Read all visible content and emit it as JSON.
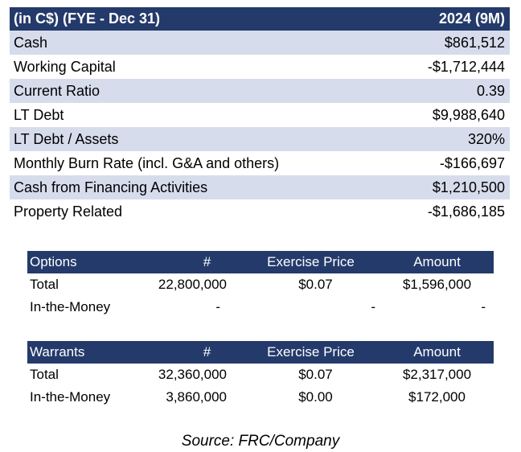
{
  "main": {
    "header": {
      "label": "(in C$) (FYE - Dec 31)",
      "period": "2024 (9M)"
    },
    "rows": [
      {
        "label": "Cash",
        "value": "$861,512"
      },
      {
        "label": "Working Capital",
        "value": "-$1,712,444"
      },
      {
        "label": "Current Ratio",
        "value": "0.39"
      },
      {
        "label": "LT Debt",
        "value": "$9,988,640"
      },
      {
        "label": "LT Debt / Assets",
        "value": "320%"
      },
      {
        "label": "Monthly Burn Rate (incl. G&A and others)",
        "value": "-$166,697"
      },
      {
        "label": "Cash from Financing Activities",
        "value": "$1,210,500"
      },
      {
        "label": "Property Related",
        "value": "-$1,686,185"
      }
    ],
    "colors": {
      "header_bg": "#243a6b",
      "alt_row_bg": "#d6dcec"
    }
  },
  "options": {
    "header": {
      "c1": "Options",
      "c2": "#",
      "c3": "Exercise Price",
      "c4": "Amount"
    },
    "rows": [
      {
        "c1": "Total",
        "c2": "22,800,000",
        "c3": "$0.07",
        "c4": "$1,596,000"
      },
      {
        "c1": "In-the-Money",
        "c2": "-",
        "c3": "-",
        "c4": "-"
      }
    ]
  },
  "warrants": {
    "header": {
      "c1": "Warrants",
      "c2": "#",
      "c3": "Exercise Price",
      "c4": "Amount"
    },
    "rows": [
      {
        "c1": "Total",
        "c2": "32,360,000",
        "c3": "$0.07",
        "c4": "$2,317,000"
      },
      {
        "c1": "In-the-Money",
        "c2": "3,860,000",
        "c3": "$0.00",
        "c4": "$172,000"
      }
    ]
  },
  "source": "Source: FRC/Company"
}
